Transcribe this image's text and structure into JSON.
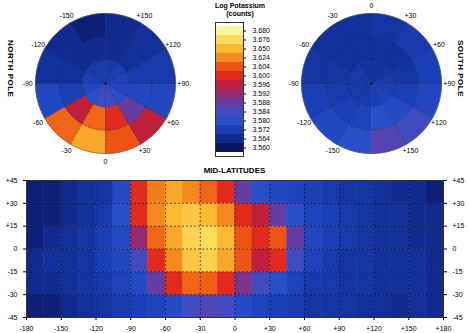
{
  "chart_data": [
    {
      "type": "colorbar",
      "title": "Log Potassium",
      "subtitle": "(counts)",
      "ticks": [
        {
          "value": 3.56,
          "label": "3.560"
        },
        {
          "value": 3.564,
          "label": "3.564"
        },
        {
          "value": 3.572,
          "label": "3.572"
        },
        {
          "value": 3.58,
          "label": "3.580"
        },
        {
          "value": 3.584,
          "label": "3.584"
        },
        {
          "value": 3.588,
          "label": "3.588"
        },
        {
          "value": 3.592,
          "label": "3.592"
        },
        {
          "value": 3.596,
          "label": "3.596"
        },
        {
          "value": 3.6,
          "label": "3.600"
        },
        {
          "value": 3.604,
          "label": "3.604"
        },
        {
          "value": 3.624,
          "label": "3.624"
        },
        {
          "value": 3.65,
          "label": "3.650"
        },
        {
          "value": 3.676,
          "label": "3.676"
        },
        {
          "value": 3.68,
          "label": "3.680"
        }
      ]
    },
    {
      "type": "polar_heatmap",
      "title": "NORTH POLE",
      "grid": true,
      "tick_labels": "x",
      "x": [
        -180,
        -150,
        -120,
        -90,
        -60,
        -30,
        0,
        30,
        60,
        90,
        120,
        150,
        180
      ],
      "y": [
        45,
        60,
        75,
        90
      ],
      "xticks": [
        {
          "value": -150,
          "label": "-150"
        },
        {
          "value": -120,
          "label": "-120"
        },
        {
          "value": -90,
          "label": "-90"
        },
        {
          "value": -60,
          "label": "-60"
        },
        {
          "value": -30,
          "label": "-30"
        },
        0,
        {
          "value": 30,
          "label": "+30"
        },
        {
          "value": 60,
          "label": "+60"
        },
        {
          "value": 90,
          "label": "+90"
        },
        {
          "value": 120,
          "label": "+120"
        },
        {
          "value": 150,
          "label": "+150"
        }
      ],
      "yticks": [
        60,
        75
      ],
      "values": [
        [
          3.562,
          3.564,
          3.566,
          3.576,
          3.61,
          3.64,
          3.604,
          3.596,
          3.576,
          3.57,
          3.566,
          3.564
        ],
        [
          3.564,
          3.564,
          3.566,
          3.572,
          3.596,
          3.61,
          3.6,
          3.588,
          3.576,
          3.57,
          3.566,
          3.564
        ],
        [
          3.57,
          3.57,
          3.572,
          3.576,
          3.58,
          3.584,
          3.584,
          3.58,
          3.576,
          3.574,
          3.572,
          3.57
        ]
      ]
    },
    {
      "type": "polar_heatmap",
      "title": "SOUTH POLE",
      "grid": true,
      "tick_labels": "x",
      "x": [
        -180,
        -150,
        -120,
        -90,
        -60,
        -30,
        0,
        30,
        60,
        90,
        120,
        150,
        180
      ],
      "y": [
        -90,
        -75,
        -60,
        -45
      ],
      "xticks": [
        {
          "value": -150,
          "label": "-150"
        },
        {
          "value": -120,
          "label": "-120"
        },
        {
          "value": -90,
          "label": "-90"
        },
        {
          "value": -60,
          "label": "-60"
        },
        {
          "value": -30,
          "label": "-30"
        },
        0,
        {
          "value": 30,
          "label": "+30"
        },
        {
          "value": 60,
          "label": "+60"
        },
        {
          "value": 90,
          "label": "+90"
        },
        {
          "value": 120,
          "label": "+120"
        },
        {
          "value": 150,
          "label": "+150"
        }
      ],
      "yticks": [
        -75,
        -60
      ],
      "values": [
        [
          3.57,
          3.57,
          3.57,
          3.57,
          3.57,
          3.568,
          3.568,
          3.568,
          3.57,
          3.572,
          3.574,
          3.572
        ],
        [
          3.574,
          3.572,
          3.57,
          3.568,
          3.566,
          3.566,
          3.566,
          3.566,
          3.568,
          3.572,
          3.578,
          3.58
        ],
        [
          3.58,
          3.576,
          3.572,
          3.568,
          3.566,
          3.566,
          3.568,
          3.57,
          3.572,
          3.576,
          3.584,
          3.586
        ]
      ]
    },
    {
      "type": "heatmap",
      "title": "MID-LATITUDES",
      "grid": true,
      "x": [
        -180,
        -165,
        -150,
        -135,
        -120,
        -105,
        -90,
        -75,
        -60,
        -45,
        -30,
        -15,
        0,
        15,
        30,
        45,
        60,
        75,
        90,
        105,
        120,
        135,
        150,
        165,
        180
      ],
      "y": [
        -45,
        -30,
        -15,
        0,
        15,
        30,
        45
      ],
      "xlim": [
        -180,
        180
      ],
      "ylim": [
        -45,
        45
      ],
      "xticks": [
        -180,
        -150,
        -120,
        -90,
        -60,
        -30,
        0,
        {
          "value": 30,
          "label": "+30"
        },
        {
          "value": 60,
          "label": "+60"
        },
        {
          "value": 90,
          "label": "+90"
        },
        {
          "value": 120,
          "label": "+120"
        },
        {
          "value": 150,
          "label": "+150"
        },
        {
          "value": 180,
          "label": "+180"
        }
      ],
      "yticks": [
        -45,
        -30,
        -15,
        0,
        {
          "value": 15,
          "label": "+15"
        },
        {
          "value": 30,
          "label": "+30"
        },
        {
          "value": 45,
          "label": "+45"
        }
      ],
      "values": [
        [
          3.562,
          3.562,
          3.564,
          3.566,
          3.568,
          3.57,
          3.572,
          3.574,
          3.578,
          3.584,
          3.586,
          3.584,
          3.578,
          3.574,
          3.572,
          3.57,
          3.568,
          3.568,
          3.568,
          3.566,
          3.566,
          3.564,
          3.566,
          3.564
        ],
        [
          3.564,
          3.564,
          3.566,
          3.568,
          3.57,
          3.574,
          3.578,
          3.588,
          3.6,
          3.61,
          3.608,
          3.6,
          3.59,
          3.584,
          3.58,
          3.574,
          3.57,
          3.57,
          3.568,
          3.568,
          3.566,
          3.566,
          3.566,
          3.564
        ],
        [
          3.564,
          3.566,
          3.566,
          3.568,
          3.572,
          3.576,
          3.584,
          3.6,
          3.624,
          3.66,
          3.668,
          3.64,
          3.604,
          3.596,
          3.6,
          3.584,
          3.574,
          3.57,
          3.568,
          3.568,
          3.566,
          3.566,
          3.566,
          3.564
        ],
        [
          3.562,
          3.564,
          3.566,
          3.568,
          3.572,
          3.578,
          3.592,
          3.61,
          3.64,
          3.67,
          3.676,
          3.65,
          3.604,
          3.6,
          3.604,
          3.588,
          3.576,
          3.572,
          3.57,
          3.568,
          3.566,
          3.566,
          3.564,
          3.564
        ],
        [
          3.562,
          3.562,
          3.564,
          3.566,
          3.57,
          3.58,
          3.6,
          3.624,
          3.65,
          3.66,
          3.65,
          3.624,
          3.6,
          3.596,
          3.588,
          3.58,
          3.574,
          3.572,
          3.57,
          3.568,
          3.566,
          3.566,
          3.564,
          3.564
        ],
        [
          3.562,
          3.562,
          3.564,
          3.566,
          3.568,
          3.578,
          3.6,
          3.62,
          3.64,
          3.624,
          3.61,
          3.6,
          3.588,
          3.58,
          3.576,
          3.574,
          3.572,
          3.57,
          3.568,
          3.568,
          3.566,
          3.564,
          3.564,
          3.562
        ]
      ]
    }
  ]
}
